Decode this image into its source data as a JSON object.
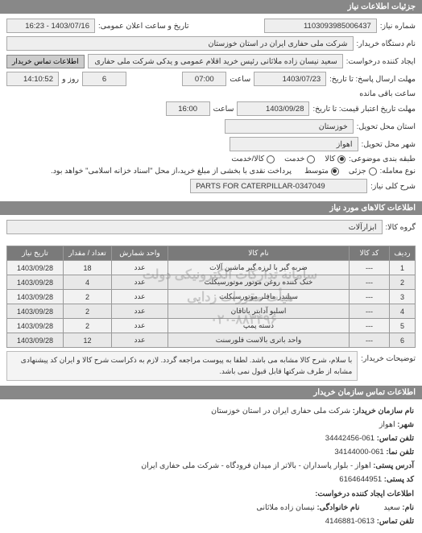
{
  "header": {
    "title": "جزئیات اطلاعات نیاز"
  },
  "form": {
    "need_number_label": "شماره نیاز:",
    "need_number": "1103093985006437",
    "announce_datetime_label": "تاریخ و ساعت اعلان عمومی:",
    "announce_datetime": "1403/07/16 - 16:23",
    "buyer_org_label": "نام دستگاه خریدار:",
    "buyer_org": "شرکت ملی حفاری ایران در استان خوزستان",
    "requester_label": "ایجاد کننده درخواست:",
    "requester": "سعید نیسان زاده ملاثانی رئیس خرید اقلام عمومی و یدکی شرکت ملی حفاری",
    "contact_btn": "اطلاعات تماس خریدار",
    "reply_deadline_label": "مهلت ارسال پاسخ: تا تاریخ:",
    "reply_deadline_date": "1403/07/23",
    "time_label": "ساعت",
    "reply_deadline_time": "07:00",
    "days_remaining": "6",
    "days_remaining_label": "روز و",
    "time_remaining": "14:10:52",
    "time_remaining_label": "ساعت باقی مانده",
    "validity_label": "مهلت تاریخ اعتبار قیمت: تا تاریخ:",
    "validity_date": "1403/09/28",
    "validity_time": "16:00",
    "delivery_province_label": "استان محل تحویل:",
    "delivery_province": "خوزستان",
    "delivery_city_label": "شهر محل تحویل:",
    "delivery_city": "اهواز",
    "packaging_label": "طبقه بندی موضوعی:",
    "packaging_options": [
      {
        "label": "کالا",
        "checked": true
      },
      {
        "label": "خدمت",
        "checked": false
      },
      {
        "label": "کالا/خدمت",
        "checked": false
      }
    ],
    "tx_type_label": "نوع معامله:",
    "tx_type_options": [
      {
        "label": "جزئی",
        "checked": false
      },
      {
        "label": "متوسط",
        "checked": true
      }
    ],
    "tx_note": "پرداخت نقدی با بخشی از مبلغ خرید،از محل \"اسناد خزانه اسلامی\" خواهد بود.",
    "need_desc_label": "شرح کلی نیاز:",
    "need_desc": "PARTS FOR CATERPILLAR-0347049"
  },
  "goods_header": "اطلاعات کالاهای مورد نیاز",
  "goods_group_label": "گروه کالا:",
  "goods_group": "ابزارآلات",
  "table": {
    "headers": [
      "ردیف",
      "کد کالا",
      "نام کالا",
      "واحد شمارش",
      "تعداد / مقدار",
      "تاریخ نیاز"
    ],
    "rows": [
      [
        "1",
        "---",
        "ضربه گیر با لرزه گیر ماشین آلات",
        "عدد",
        "18",
        "1403/09/28"
      ],
      [
        "2",
        "---",
        "خنک کننده روغن موتور موتورسیکلت",
        "عدد",
        "4",
        "1403/09/28"
      ],
      [
        "3",
        "---",
        "سیلندر مافلر موتورسیکلت",
        "عدد",
        "2",
        "1403/09/28"
      ],
      [
        "4",
        "---",
        "اسلیو آدابتر یاتاقان",
        "عدد",
        "2",
        "1403/09/28"
      ],
      [
        "5",
        "---",
        "دسته پمپ",
        "عدد",
        "2",
        "1403/09/28"
      ],
      [
        "6",
        "---",
        "واحد باتری بالاست فلورسنت",
        "عدد",
        "12",
        "1403/09/28"
      ]
    ],
    "watermark1": "سامانه تدارکات الکترونیکی دولت",
    "watermark2": "هیأت مقررات زدایی",
    "watermark3": "۰۲۰-۸۸۳۴۹۶"
  },
  "buyer_note_label": "توضیحات خریدار:",
  "buyer_note": "با سلام، شرح کالا مشابه می باشد. لطفا به پیوست مراجعه گردد. لازم به ذکراست شرح کالا و ایران کد پیشنهادی مشابه از طرف شرکتها قابل قبول نمی باشد.",
  "contact_header": "اطلاعات تماس سازمان خریدار",
  "contact": {
    "org_label": "نام سازمان خریدار:",
    "org": "شرکت ملی حفاری ایران در استان خوزستان",
    "city_label": "شهر:",
    "city": "اهواز",
    "phone_label": "تلفن تماس:",
    "phone": "061-34442456",
    "fax_label": "تلفن نما:",
    "fax": "061-34144000",
    "address_label": "آدرس پستی:",
    "address": "اهواز - بلوار پاسداران - بالاتر از میدان فرودگاه - شرکت ملی حفاری ایران",
    "postal_label": "کد پستی:",
    "postal": "6164644951",
    "creator_header": "اطلاعات ایجاد کننده درخواست:",
    "name_label": "نام:",
    "name": "سعید",
    "surname_label": "نام خانوادگی:",
    "surname": "نیسان زاده ملاثانی",
    "creator_phone_label": "تلفن تماس:",
    "creator_phone": "0613-4146881"
  }
}
